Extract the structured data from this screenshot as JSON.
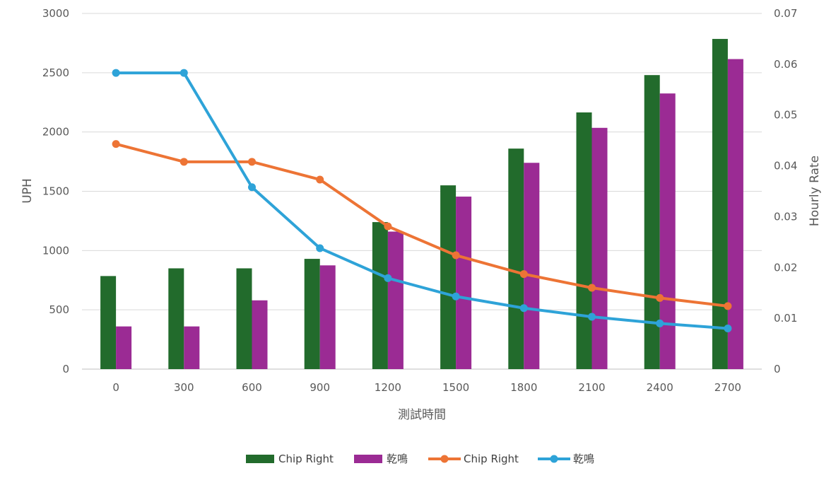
{
  "chart_data": {
    "type": "bar",
    "categories": [
      "0",
      "300",
      "600",
      "900",
      "1200",
      "1500",
      "1800",
      "2100",
      "2400",
      "2700"
    ],
    "xlabel": "測試時間",
    "ylabel": "UPH",
    "y2label": "Hourly Rate",
    "ylim": [
      0,
      3000
    ],
    "y2lim": [
      0,
      0.07
    ],
    "yticks": [
      "0",
      "500",
      "1000",
      "1500",
      "2000",
      "2500",
      "3000"
    ],
    "y2ticks": [
      "0",
      "0.01",
      "0.02",
      "0.03",
      "0.04",
      "0.05",
      "0.06",
      "0.07"
    ],
    "grid": true,
    "legend_position": "bottom",
    "series": [
      {
        "name": "Chip Right",
        "type": "bar",
        "axis": "left",
        "color": "#226b2c",
        "values": [
          785,
          850,
          850,
          930,
          1240,
          1550,
          1860,
          2165,
          2480,
          2785
        ]
      },
      {
        "name": "乾鳴",
        "type": "bar",
        "axis": "left",
        "color": "#9b2b94",
        "values": [
          360,
          360,
          580,
          875,
          1160,
          1455,
          1740,
          2035,
          2325,
          2615
        ]
      },
      {
        "name": "Chip Right",
        "type": "line",
        "axis": "right",
        "color": "#ed7435",
        "values": [
          0.0443,
          0.0408,
          0.0408,
          0.0373,
          0.0281,
          0.0224,
          0.0187,
          0.016,
          0.014,
          0.0124
        ]
      },
      {
        "name": "乾鳴",
        "type": "line",
        "axis": "right",
        "color": "#2ea3d8",
        "values": [
          0.0583,
          0.0583,
          0.0358,
          0.0238,
          0.0179,
          0.0143,
          0.012,
          0.0103,
          0.009,
          0.008
        ]
      }
    ]
  }
}
